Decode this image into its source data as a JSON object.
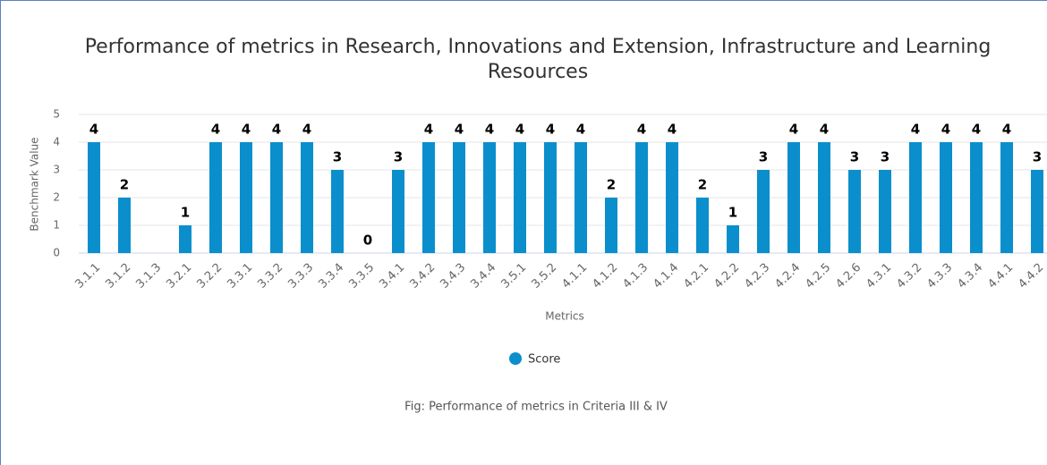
{
  "chart_data": {
    "type": "bar",
    "title": "Performance of metrics in Research, Innovations and Extension, Infrastructure and Learning Resources",
    "x_label": "Metrics",
    "y_label": "Benchmark Value",
    "categories": [
      "3.1.1",
      "3.1.2",
      "3.1.3",
      "3.2.1",
      "3.2.2",
      "3.3.1",
      "3.3.2",
      "3.3.3",
      "3.3.4",
      "3.3.5",
      "3.4.1",
      "3.4.2",
      "3.4.3",
      "3.4.4",
      "3.5.1",
      "3.5.2",
      "4.1.1",
      "4.1.2",
      "4.1.3",
      "4.1.4",
      "4.2.1",
      "4.2.2",
      "4.2.3",
      "4.2.4",
      "4.2.5",
      "4.2.6",
      "4.3.1",
      "4.3.2",
      "4.3.3",
      "4.3.4",
      "4.4.1",
      "4.4.2"
    ],
    "series": [
      {
        "name": "Score",
        "color": "#0a8fcc",
        "values": [
          4,
          2,
          null,
          1,
          4,
          4,
          4,
          4,
          3,
          0,
          3,
          4,
          4,
          4,
          4,
          4,
          4,
          2,
          4,
          4,
          2,
          1,
          3,
          4,
          4,
          3,
          3,
          4,
          4,
          4,
          4,
          3
        ]
      }
    ],
    "ylim": [
      0,
      5
    ],
    "yticks": [
      0,
      1,
      2,
      3,
      4,
      5
    ],
    "grid": true,
    "legend": "bottom",
    "caption": "Fig: Performance of metrics in Criteria III & IV"
  }
}
